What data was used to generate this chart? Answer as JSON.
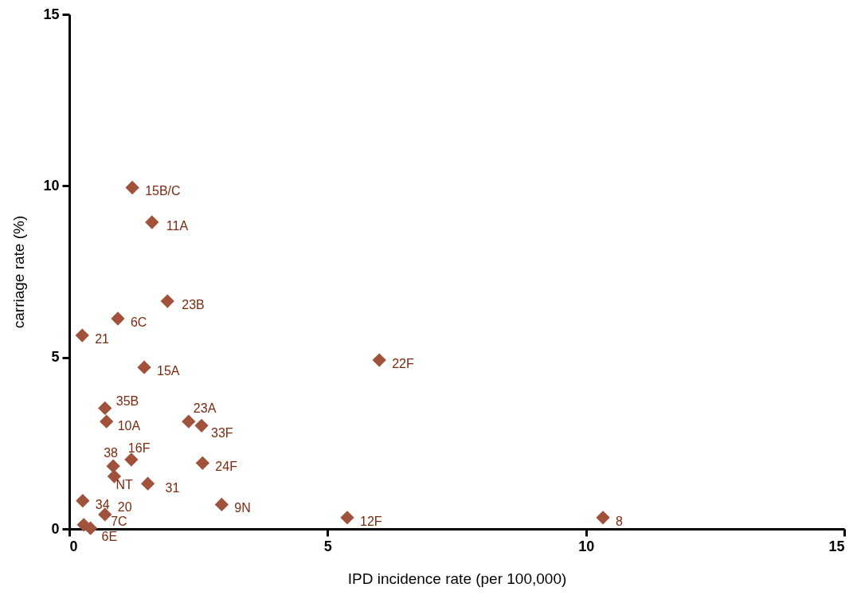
{
  "chart_data": {
    "type": "scatter",
    "xlabel": "IPD incidence rate (per 100,000)",
    "ylabel": "carriage rate (%)",
    "x": [
      1.22,
      1.6,
      1.9,
      0.94,
      0.25,
      1.45,
      6.0,
      0.69,
      0.72,
      2.31,
      2.56,
      0.85,
      1.2,
      0.87,
      1.52,
      2.58,
      2.95,
      0.26,
      0.69,
      0.28,
      0.41,
      5.38,
      10.33
    ],
    "series": [
      {
        "color": "#a0523a",
        "values": [
          9.95,
          8.94,
          6.64,
          6.13,
          5.64,
          4.71,
          4.92,
          3.52,
          3.13,
          3.13,
          3.01,
          1.83,
          2.02,
          1.53,
          1.32,
          1.92,
          0.71,
          0.82,
          0.42,
          0.12,
          0.02,
          0.33,
          0.33
        ]
      }
    ],
    "annotations": [
      {
        "text": "15B/C",
        "x": 1.22,
        "y": 9.95
      },
      {
        "text": "11A",
        "x": 1.6,
        "y": 8.94
      },
      {
        "text": "23B",
        "x": 1.9,
        "y": 6.64
      },
      {
        "text": "6C",
        "x": 0.94,
        "y": 6.13
      },
      {
        "text": "21",
        "x": 0.25,
        "y": 5.64
      },
      {
        "text": "15A",
        "x": 1.45,
        "y": 4.71
      },
      {
        "text": "22F",
        "x": 6.0,
        "y": 4.92
      },
      {
        "text": "35B",
        "x": 0.69,
        "y": 3.52
      },
      {
        "text": "10A",
        "x": 0.72,
        "y": 3.13
      },
      {
        "text": "23A",
        "x": 2.31,
        "y": 3.13
      },
      {
        "text": "33F",
        "x": 2.56,
        "y": 3.01
      },
      {
        "text": "38",
        "x": 0.85,
        "y": 1.83
      },
      {
        "text": "16F",
        "x": 1.2,
        "y": 2.02
      },
      {
        "text": "NT",
        "x": 0.87,
        "y": 1.53
      },
      {
        "text": "31",
        "x": 1.52,
        "y": 1.32
      },
      {
        "text": "24F",
        "x": 2.58,
        "y": 1.92
      },
      {
        "text": "9N",
        "x": 2.95,
        "y": 0.71
      },
      {
        "text": "34",
        "x": 0.26,
        "y": 0.82
      },
      {
        "text": "20",
        "x": 0.69,
        "y": 0.42
      },
      {
        "text": "7C",
        "x": 0.28,
        "y": 0.12
      },
      {
        "text": "6E",
        "x": 0.41,
        "y": 0.02
      },
      {
        "text": "12F",
        "x": 5.38,
        "y": 0.33
      },
      {
        "text": "8",
        "x": 10.33,
        "y": 0.33
      }
    ],
    "xlim": [
      0,
      15
    ],
    "xticks": [
      0,
      5,
      10,
      15
    ],
    "ylim": [
      0,
      15
    ],
    "yticks": [
      0,
      5,
      10,
      15
    ],
    "marker": "diamond",
    "grid": false
  }
}
